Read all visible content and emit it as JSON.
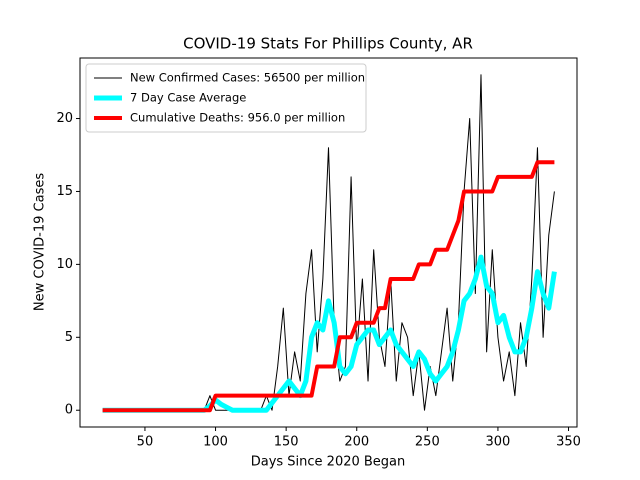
{
  "chart_data": {
    "type": "line",
    "title": "COVID-19 Stats For Phillips County, AR",
    "x_label": "Days Since 2020 Began",
    "y_label": "New COVID-19 Cases",
    "xlim": [
      4,
      356
    ],
    "ylim": [
      -1.15,
      24.15
    ],
    "xticks": [
      50,
      100,
      150,
      200,
      250,
      300,
      350
    ],
    "yticks": [
      0,
      5,
      10,
      15,
      20
    ],
    "grid": false,
    "legend": "upper left",
    "x": [
      20,
      24,
      28,
      32,
      36,
      40,
      44,
      48,
      52,
      56,
      60,
      64,
      68,
      72,
      76,
      80,
      84,
      88,
      92,
      96,
      100,
      104,
      108,
      112,
      116,
      120,
      124,
      128,
      132,
      136,
      140,
      144,
      148,
      152,
      156,
      160,
      164,
      168,
      172,
      176,
      180,
      184,
      188,
      192,
      196,
      200,
      204,
      208,
      212,
      216,
      220,
      224,
      228,
      232,
      236,
      240,
      244,
      248,
      252,
      256,
      260,
      264,
      268,
      272,
      276,
      280,
      284,
      288,
      292,
      296,
      300,
      304,
      308,
      312,
      316,
      320,
      324,
      328,
      332,
      336,
      340
    ],
    "series": [
      {
        "name": "New Confirmed Cases: 56500 per million",
        "color": "#000000",
        "width": 1,
        "values": [
          0,
          0,
          0,
          0,
          0,
          0,
          0,
          0,
          0,
          0,
          0,
          0,
          0,
          0,
          0,
          0,
          0,
          0,
          0,
          1,
          0,
          0,
          0,
          0,
          0,
          0,
          0,
          0,
          0,
          1,
          0,
          3,
          7,
          1,
          4,
          2,
          8,
          11,
          4,
          9,
          18,
          6,
          2,
          3,
          16,
          4,
          9,
          2,
          11,
          5,
          3,
          9,
          2,
          6,
          5,
          1,
          4,
          0,
          3,
          1,
          4,
          7,
          2,
          6,
          15,
          20,
          8,
          23,
          4,
          11,
          5,
          2,
          4,
          1,
          6,
          3,
          9,
          18,
          5,
          12,
          15
        ]
      },
      {
        "name": "7 Day Case Average",
        "color": "#00ffff",
        "width": 5,
        "values": [
          0,
          0,
          0,
          0,
          0,
          0,
          0,
          0,
          0,
          0,
          0,
          0,
          0,
          0,
          0,
          0,
          0,
          0,
          0,
          0.3,
          0.7,
          0.4,
          0.2,
          0,
          0,
          0,
          0,
          0,
          0,
          0,
          0.5,
          1,
          1.5,
          2,
          1.5,
          1,
          2,
          5,
          6,
          5.5,
          7.5,
          6,
          3,
          2.5,
          3,
          4.5,
          5,
          5.5,
          5.5,
          4.5,
          5,
          5.5,
          4.5,
          4,
          3.5,
          3,
          4,
          3.5,
          2.5,
          2,
          2.5,
          3,
          4,
          5.5,
          7.5,
          8,
          9,
          10.5,
          8.5,
          8,
          6,
          6.5,
          5,
          4,
          4,
          5,
          7,
          9.5,
          8,
          7,
          9.5
        ]
      },
      {
        "name": "Cumulative Deaths: 956.0 per million",
        "color": "#ff0000",
        "width": 4,
        "values": [
          0,
          0,
          0,
          0,
          0,
          0,
          0,
          0,
          0,
          0,
          0,
          0,
          0,
          0,
          0,
          0,
          0,
          0,
          0,
          0,
          1,
          1,
          1,
          1,
          1,
          1,
          1,
          1,
          1,
          1,
          1,
          1,
          1,
          1,
          1,
          1,
          1,
          1,
          3,
          3,
          3,
          3,
          5,
          5,
          5,
          6,
          6,
          6,
          6,
          7,
          7,
          9,
          9,
          9,
          9,
          9,
          10,
          10,
          10,
          11,
          11,
          11,
          12,
          13,
          15,
          15,
          15,
          15,
          15,
          15,
          16,
          16,
          16,
          16,
          16,
          16,
          16,
          17,
          17,
          17,
          17
        ]
      }
    ]
  }
}
